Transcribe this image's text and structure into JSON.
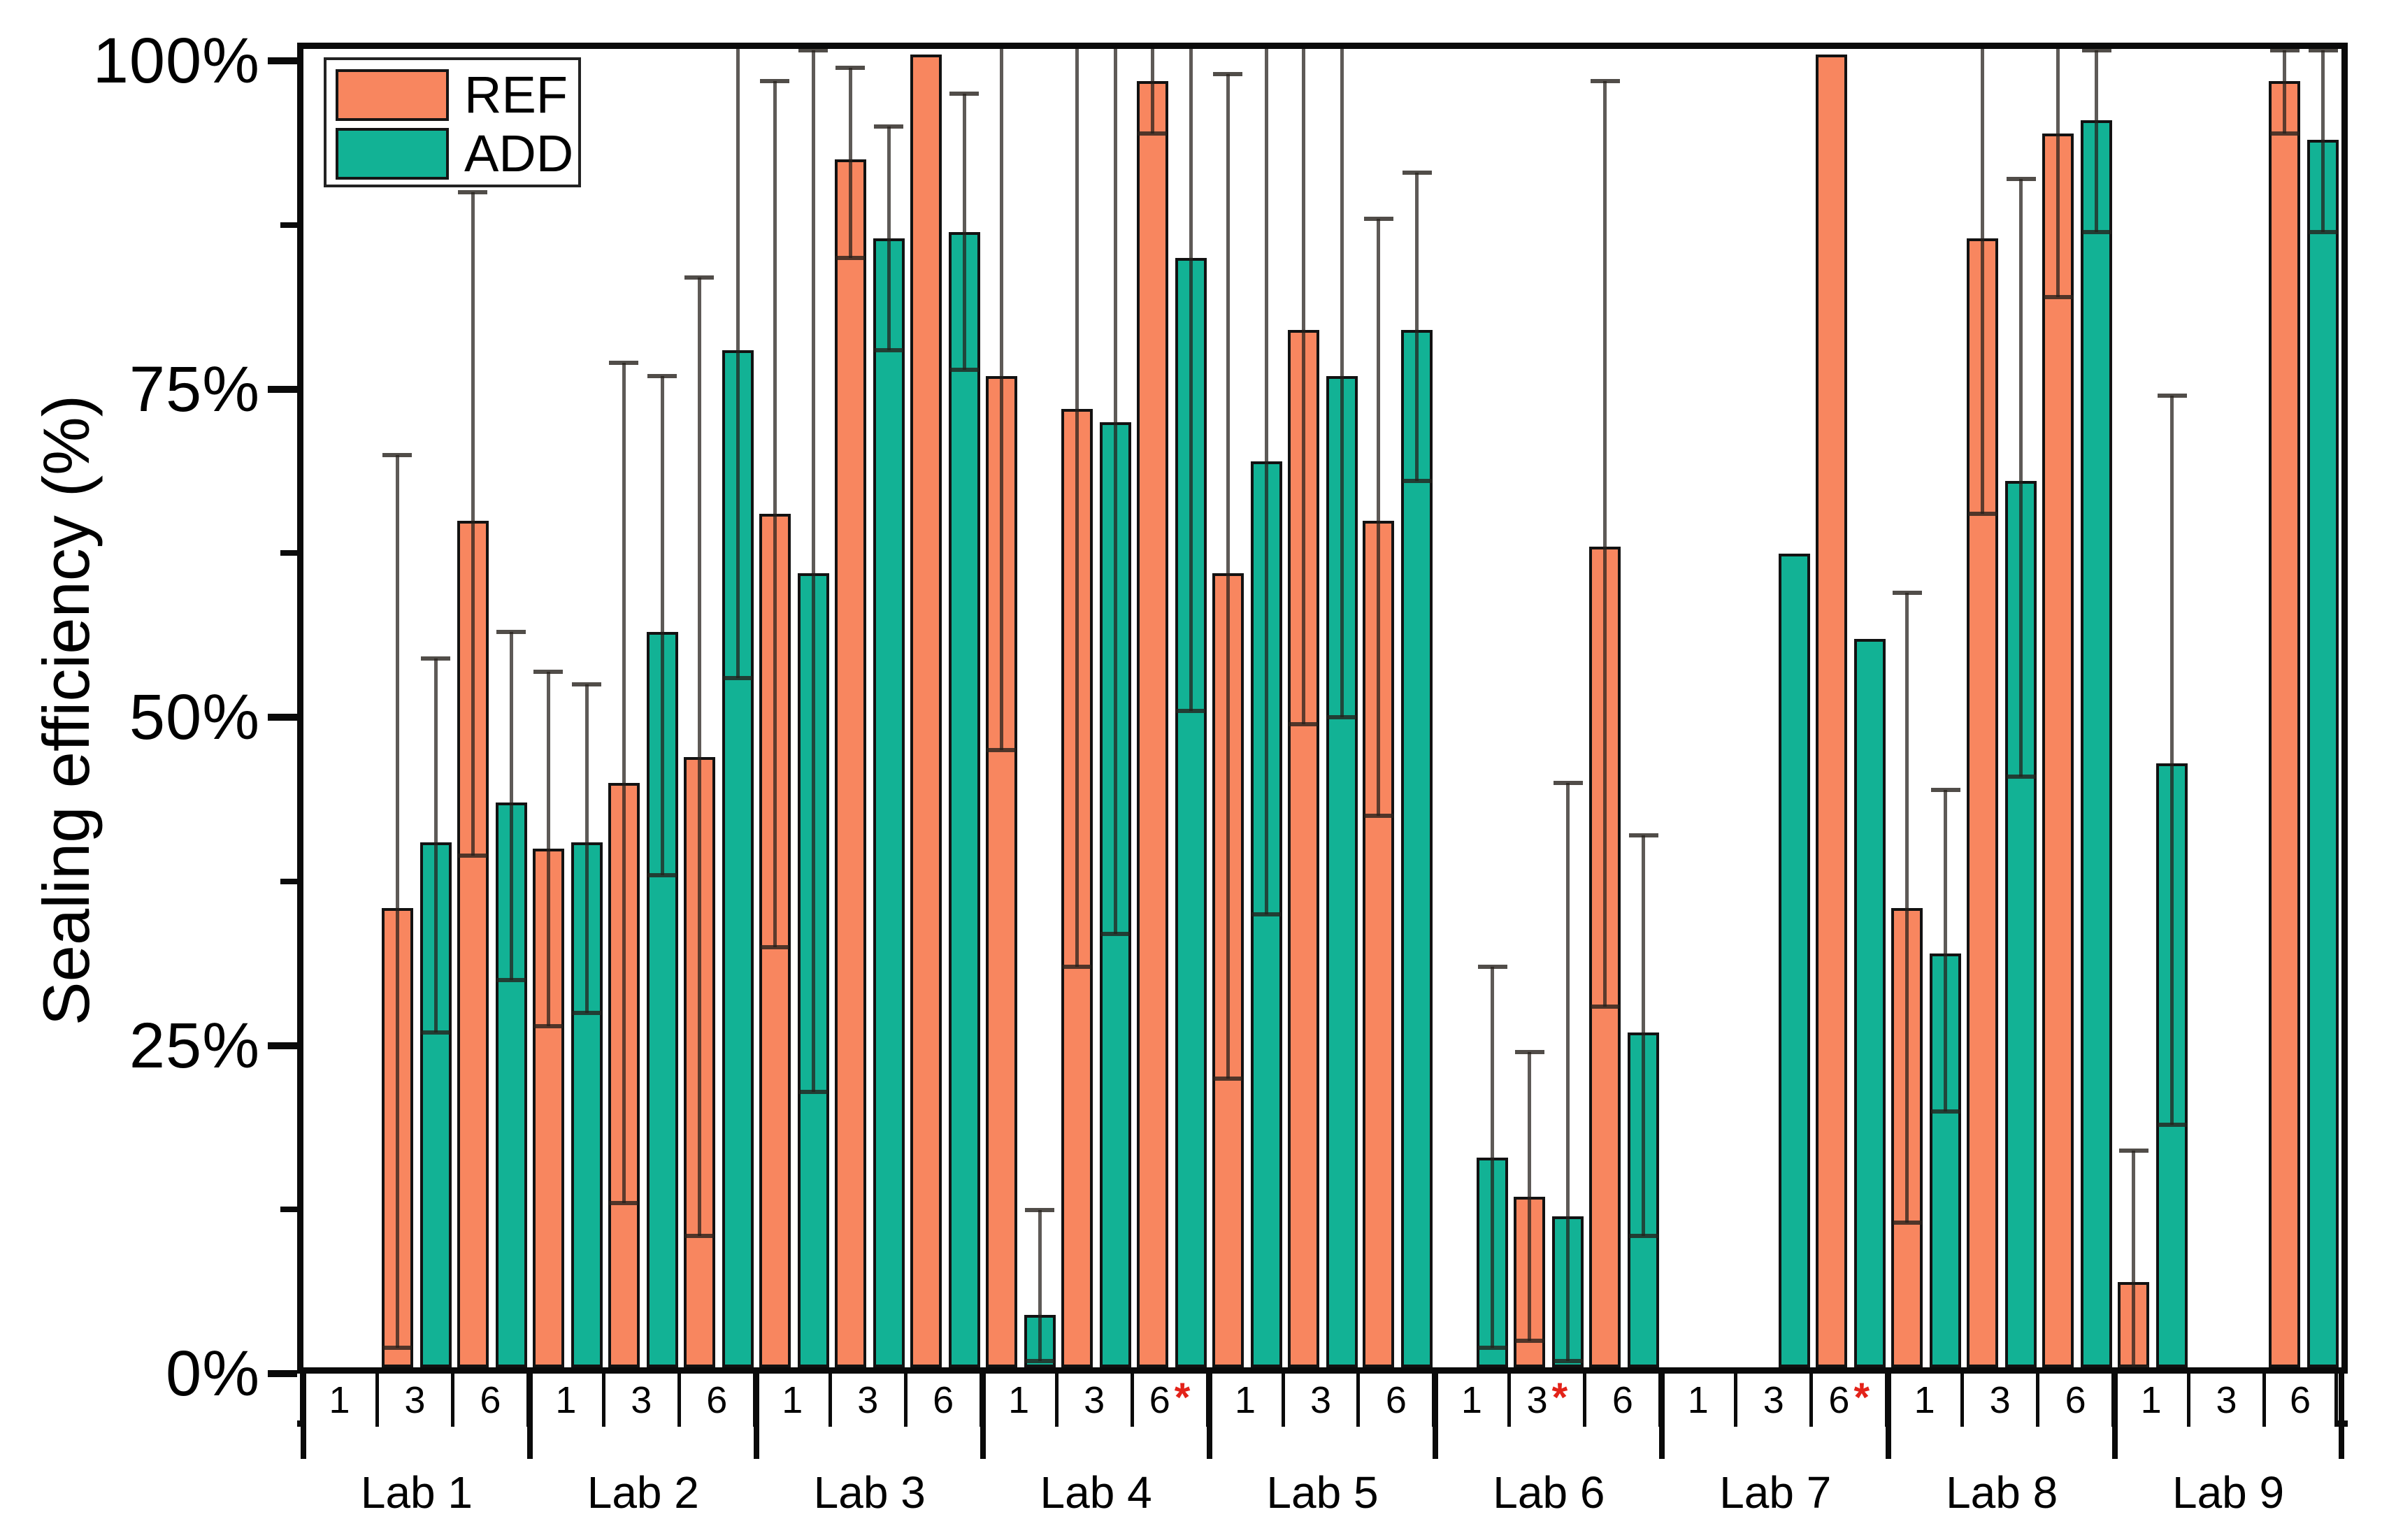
{
  "chart_data": {
    "type": "bar",
    "title": "",
    "ylabel": "Sealing efficiency (%)",
    "grid": false,
    "legend_position": "top-left-inside",
    "colors": {
      "REF": "#F8865F",
      "ADD": "#12B295",
      "asterisk": "#E32219",
      "bar_border": "#121212",
      "error_bar": "#3a322c"
    },
    "legend": [
      {
        "label": "REF"
      },
      {
        "label": "ADD"
      }
    ],
    "y_axis": {
      "range": [
        0,
        100
      ],
      "unit": "%",
      "tick_labels": [
        "0%",
        "25%",
        "50%",
        "75%",
        "100%"
      ],
      "tick_values": [
        0,
        25,
        50,
        75,
        100
      ],
      "minor_tick_values": [
        12.5,
        37.5,
        62.5,
        87.5
      ]
    },
    "x_axis": {
      "group_times": [
        "1",
        "3",
        "6"
      ],
      "note_symbol": "*"
    },
    "labs": [
      {
        "label": "Lab 1",
        "groups": [
          {
            "time": "1",
            "ast": false,
            "bars": []
          },
          {
            "time": "3",
            "ast": false,
            "bars": [
              {
                "series": "REF",
                "value": 35,
                "err_lo": 1.5,
                "err_hi": 69.5
              },
              {
                "series": "ADD",
                "value": 40,
                "err_lo": 25.5,
                "err_hi": 54
              }
            ]
          },
          {
            "time": "6",
            "ast": false,
            "bars": [
              {
                "series": "REF",
                "value": 64.5,
                "err_lo": 39,
                "err_hi": 89.5
              },
              {
                "series": "ADD",
                "value": 43,
                "err_lo": 29.5,
                "err_hi": 56
              }
            ]
          }
        ]
      },
      {
        "label": "Lab 2",
        "groups": [
          {
            "time": "1",
            "ast": false,
            "bars": [
              {
                "series": "REF",
                "value": 39.5,
                "err_lo": 26,
                "err_hi": 53
              },
              {
                "series": "ADD",
                "value": 40,
                "err_lo": 27,
                "err_hi": 52
              }
            ]
          },
          {
            "time": "3",
            "ast": false,
            "bars": [
              {
                "series": "REF",
                "value": 44.5,
                "err_lo": 12.5,
                "err_hi": 76.5
              },
              {
                "series": "ADD",
                "value": 56,
                "err_lo": 37.5,
                "err_hi": 75.5
              }
            ]
          },
          {
            "time": "6",
            "ast": false,
            "bars": [
              {
                "series": "REF",
                "value": 46.5,
                "err_lo": 10,
                "err_hi": 83
              },
              {
                "series": "ADD",
                "value": 77.5,
                "err_lo": 52.5,
                "err_hi": 103
              }
            ]
          }
        ]
      },
      {
        "label": "Lab 3",
        "groups": [
          {
            "time": "1",
            "ast": false,
            "bars": [
              {
                "series": "REF",
                "value": 65,
                "err_lo": 32,
                "err_hi": 98
              },
              {
                "series": "ADD",
                "value": 60.5,
                "err_lo": 21,
                "err_hi": 100.3
              }
            ]
          },
          {
            "time": "3",
            "ast": false,
            "bars": [
              {
                "series": "REF",
                "value": 92,
                "err_lo": 84.5,
                "err_hi": 99
              },
              {
                "series": "ADD",
                "value": 86,
                "err_lo": 77.5,
                "err_hi": 94.5
              }
            ]
          },
          {
            "time": "6",
            "ast": false,
            "bars": [
              {
                "series": "REF",
                "value": 100,
                "err_lo": null,
                "err_hi": null
              },
              {
                "series": "ADD",
                "value": 86.5,
                "err_lo": 76,
                "err_hi": 97
              }
            ]
          }
        ]
      },
      {
        "label": "Lab 4",
        "groups": [
          {
            "time": "1",
            "ast": false,
            "bars": [
              {
                "series": "REF",
                "value": 75.5,
                "err_lo": 47,
                "err_hi": 103
              },
              {
                "series": "ADD",
                "value": 4,
                "err_lo": 0.5,
                "err_hi": 12
              }
            ]
          },
          {
            "time": "3",
            "ast": false,
            "bars": [
              {
                "series": "REF",
                "value": 73,
                "err_lo": 30.5,
                "err_hi": 103
              },
              {
                "series": "ADD",
                "value": 72,
                "err_lo": 33,
                "err_hi": 103
              }
            ]
          },
          {
            "time": "6",
            "ast": true,
            "bars": [
              {
                "series": "REF",
                "value": 98,
                "err_lo": 94,
                "err_hi": 103
              },
              {
                "series": "ADD",
                "value": 84.5,
                "err_lo": 50,
                "err_hi": 103
              }
            ]
          }
        ]
      },
      {
        "label": "Lab 5",
        "groups": [
          {
            "time": "1",
            "ast": false,
            "bars": [
              {
                "series": "REF",
                "value": 60.5,
                "err_lo": 22,
                "err_hi": 98.5
              },
              {
                "series": "ADD",
                "value": 69,
                "err_lo": 34.5,
                "err_hi": 103
              }
            ]
          },
          {
            "time": "3",
            "ast": false,
            "bars": [
              {
                "series": "REF",
                "value": 79,
                "err_lo": 49,
                "err_hi": 103
              },
              {
                "series": "ADD",
                "value": 75.5,
                "err_lo": 49.5,
                "err_hi": 103
              }
            ]
          },
          {
            "time": "6",
            "ast": false,
            "bars": [
              {
                "series": "REF",
                "value": 64.5,
                "err_lo": 42,
                "err_hi": 87.5
              },
              {
                "series": "ADD",
                "value": 79,
                "err_lo": 67.5,
                "err_hi": 91
              }
            ]
          }
        ]
      },
      {
        "label": "Lab 6",
        "groups": [
          {
            "time": "1",
            "ast": false,
            "bars": [
              {
                "series": "ADD",
                "value": 16,
                "err_lo": 1.5,
                "err_hi": 30.5
              }
            ]
          },
          {
            "time": "3",
            "ast": true,
            "bars": [
              {
                "series": "REF",
                "value": 13,
                "err_lo": 2,
                "err_hi": 24
              },
              {
                "series": "ADD",
                "value": 11.5,
                "err_lo": 0.5,
                "err_hi": 44.5
              }
            ]
          },
          {
            "time": "6",
            "ast": false,
            "bars": [
              {
                "series": "REF",
                "value": 62.5,
                "err_lo": 27.5,
                "err_hi": 98
              },
              {
                "series": "ADD",
                "value": 25.5,
                "err_lo": 10,
                "err_hi": 40.5
              }
            ]
          }
        ]
      },
      {
        "label": "Lab 7",
        "groups": [
          {
            "time": "1",
            "ast": false,
            "bars": []
          },
          {
            "time": "3",
            "ast": false,
            "bars": [
              {
                "series": "ADD",
                "value": 62,
                "err_lo": null,
                "err_hi": null
              }
            ]
          },
          {
            "time": "6",
            "ast": true,
            "bars": [
              {
                "series": "REF",
                "value": 100,
                "err_lo": null,
                "err_hi": null
              },
              {
                "series": "ADD",
                "value": 55.5,
                "err_lo": null,
                "err_hi": null
              }
            ]
          }
        ]
      },
      {
        "label": "Lab 8",
        "groups": [
          {
            "time": "1",
            "ast": false,
            "bars": [
              {
                "series": "REF",
                "value": 35,
                "err_lo": 11,
                "err_hi": 59
              },
              {
                "series": "ADD",
                "value": 31.5,
                "err_lo": 19.5,
                "err_hi": 44
              }
            ]
          },
          {
            "time": "3",
            "ast": false,
            "bars": [
              {
                "series": "REF",
                "value": 86,
                "err_lo": 65,
                "err_hi": 103
              },
              {
                "series": "ADD",
                "value": 67.5,
                "err_lo": 45,
                "err_hi": 90.5
              }
            ]
          },
          {
            "time": "6",
            "ast": false,
            "bars": [
              {
                "series": "REF",
                "value": 94,
                "err_lo": 81.5,
                "err_hi": 103
              },
              {
                "series": "ADD",
                "value": 95,
                "err_lo": 86.5,
                "err_hi": 100.3
              }
            ]
          }
        ]
      },
      {
        "label": "Lab 9",
        "groups": [
          {
            "time": "1",
            "ast": false,
            "bars": [
              {
                "series": "REF",
                "value": 6.5,
                "err_lo": 0,
                "err_hi": 16.5
              },
              {
                "series": "ADD",
                "value": 46,
                "err_lo": 18.5,
                "err_hi": 74
              }
            ]
          },
          {
            "time": "3",
            "ast": false,
            "bars": []
          },
          {
            "time": "6",
            "ast": false,
            "bars": [
              {
                "series": "REF",
                "value": 98,
                "err_lo": 94,
                "err_hi": 100.3
              },
              {
                "series": "ADD",
                "value": 93.5,
                "err_lo": 86.5,
                "err_hi": 100.3
              }
            ]
          }
        ]
      }
    ]
  }
}
